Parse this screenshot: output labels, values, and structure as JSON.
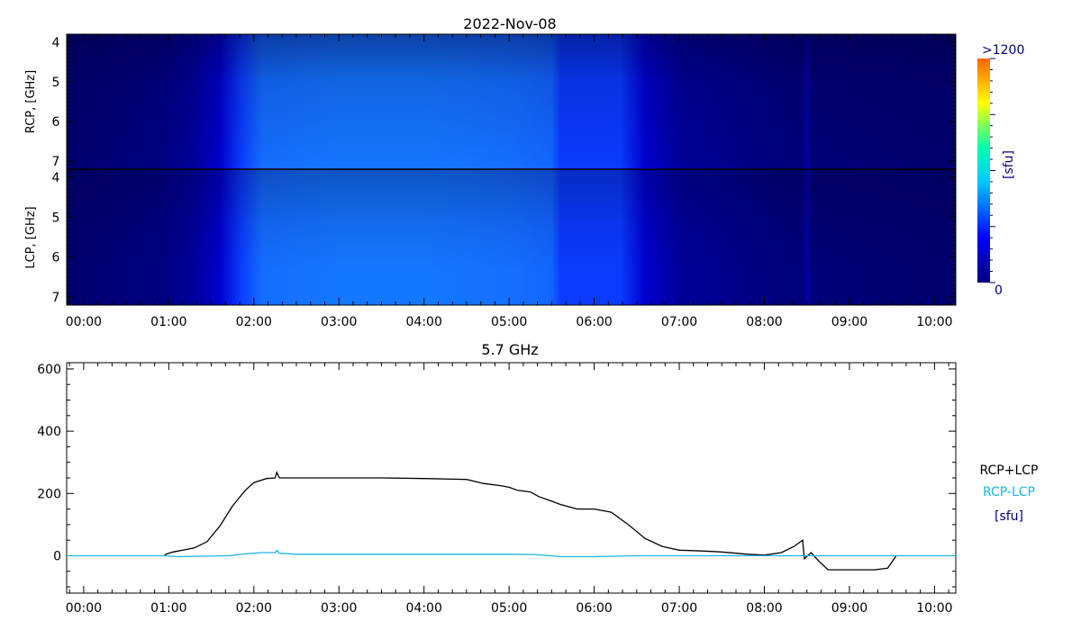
{
  "title": "2022-Nov-08",
  "spectrogram": {
    "rcp_label": "RCP, [GHz]",
    "lcp_label": "LCP, [GHz]",
    "y_ticks": [
      "4",
      "5",
      "6",
      "7"
    ],
    "y_range": [
      3.8,
      7.2
    ],
    "x_ticks": [
      "00:00",
      "01:00",
      "02:00",
      "03:00",
      "04:00",
      "05:00",
      "06:00",
      "07:00",
      "08:00",
      "09:00",
      "10:00"
    ],
    "x_range_hours": [
      -0.2,
      10.25
    ],
    "colorbar": {
      "max_label": ">1200",
      "min_label": "0",
      "unit_label": "[sfu]",
      "colors": [
        "#00007a",
        "#0000ff",
        "#00c8ff",
        "#00ffb0",
        "#ffff00",
        "#ff6400"
      ]
    }
  },
  "chart_data": {
    "type": "line",
    "title": "5.7 GHz",
    "xlabel": "",
    "ylabel": "",
    "x_ticks": [
      "00:00",
      "01:00",
      "02:00",
      "03:00",
      "04:00",
      "05:00",
      "06:00",
      "07:00",
      "08:00",
      "09:00",
      "10:00"
    ],
    "y_ticks": [
      "0",
      "200",
      "400",
      "600"
    ],
    "xlim_hours": [
      -0.2,
      10.25
    ],
    "ylim": [
      -120,
      620
    ],
    "legend_position": "right",
    "units_label": "[sfu]",
    "series": [
      {
        "name": "RCP+LCP",
        "color": "#000000",
        "x_hours": [
          0.95,
          1.05,
          1.2,
          1.3,
          1.45,
          1.6,
          1.75,
          1.9,
          2.0,
          2.15,
          2.25,
          2.27,
          2.3,
          2.5,
          3.0,
          3.5,
          4.0,
          4.5,
          4.7,
          4.9,
          5.0,
          5.1,
          5.25,
          5.35,
          5.5,
          5.6,
          5.8,
          6.0,
          6.2,
          6.4,
          6.6,
          6.8,
          7.0,
          7.3,
          7.5,
          7.8,
          8.0,
          8.2,
          8.35,
          8.45,
          8.47,
          8.55,
          8.65,
          8.75,
          9.0,
          9.3,
          9.45,
          9.55
        ],
        "values": [
          3,
          12,
          20,
          25,
          45,
          95,
          160,
          210,
          235,
          248,
          250,
          268,
          250,
          250,
          250,
          250,
          248,
          245,
          232,
          225,
          220,
          210,
          205,
          190,
          175,
          165,
          150,
          150,
          140,
          100,
          55,
          30,
          18,
          15,
          12,
          5,
          2,
          10,
          30,
          50,
          -10,
          10,
          -20,
          -45,
          -45,
          -45,
          -40,
          0
        ]
      },
      {
        "name": "RCP-LCP",
        "color": "#1eb4e6",
        "x_hours": [
          -0.2,
          0.95,
          1.1,
          1.7,
          1.9,
          2.1,
          2.25,
          2.27,
          2.3,
          2.5,
          3.0,
          4.0,
          5.0,
          5.3,
          5.5,
          5.6,
          6.0,
          6.5,
          7.0,
          8.0,
          9.0,
          10.25
        ],
        "values": [
          0,
          0,
          -3,
          0,
          6,
          10,
          10,
          17,
          8,
          5,
          5,
          5,
          5,
          4,
          0,
          -3,
          -3,
          0,
          0,
          0,
          0,
          0
        ]
      }
    ]
  }
}
